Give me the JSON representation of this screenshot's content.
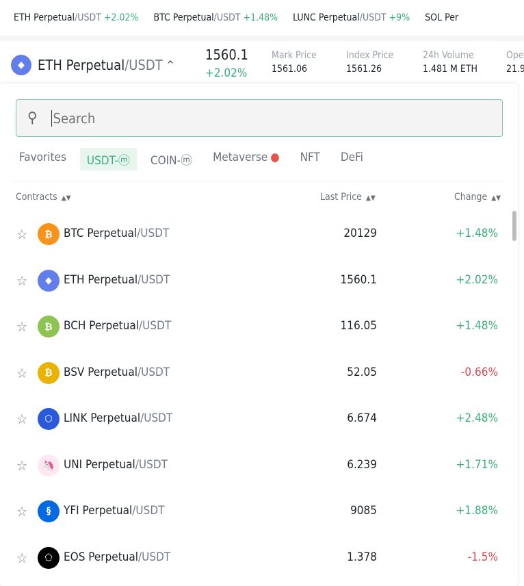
{
  "ticker": [
    {
      "base": "ETH Perpetual",
      "quote": "/USDT",
      "change": "+2.02%"
    },
    {
      "base": "BTC Perpetual",
      "quote": "/USDT",
      "change": "+1.48%"
    },
    {
      "base": "LUNC Perpetual",
      "quote": "/USDT",
      "change": "+9%"
    },
    {
      "base": "SOL Per",
      "quote": "",
      "change": ""
    }
  ],
  "header": {
    "base": "ETH Perpetual",
    "quote": "/USDT",
    "price": "1560.1",
    "change": "+2.02%",
    "stats": [
      {
        "label": "Mark Price",
        "value": "1561.06"
      },
      {
        "label": "Index Price",
        "value": "1561.26"
      },
      {
        "label": "24h Volume",
        "value": "1.481 M ETH"
      },
      {
        "label": "Ope",
        "value": "21.9"
      }
    ]
  },
  "search": {
    "placeholder": "Search"
  },
  "tabs": [
    "Favorites",
    "USDT-ⓜ",
    "COIN-ⓜ",
    "Metaverse",
    "NFT",
    "DeFi"
  ],
  "columns": {
    "contracts": "Contracts",
    "last_price": "Last Price",
    "change": "Change"
  },
  "rows": [
    {
      "base": "BTC Perpetual",
      "quote": "/USDT",
      "price": "20129",
      "change": "+1.48%",
      "up": true,
      "icon": "bitcoin-icon",
      "color": "#f7931a",
      "glyph": "₿"
    },
    {
      "base": "ETH Perpetual",
      "quote": "/USDT",
      "price": "1560.1",
      "change": "+2.02%",
      "up": true,
      "icon": "ethereum-icon",
      "color": "#627eea",
      "glyph": "◆"
    },
    {
      "base": "BCH Perpetual",
      "quote": "/USDT",
      "price": "116.05",
      "change": "+1.48%",
      "up": true,
      "icon": "bitcoin-cash-icon",
      "color": "#8dc351",
      "glyph": "₿"
    },
    {
      "base": "BSV Perpetual",
      "quote": "/USDT",
      "price": "52.05",
      "change": "-0.66%",
      "up": false,
      "icon": "bitcoin-sv-icon",
      "color": "#eab300",
      "glyph": "₿"
    },
    {
      "base": "LINK Perpetual",
      "quote": "/USDT",
      "price": "6.674",
      "change": "+2.48%",
      "up": true,
      "icon": "chainlink-icon",
      "color": "#2a5ada",
      "glyph": "⬡"
    },
    {
      "base": "UNI Perpetual",
      "quote": "/USDT",
      "price": "6.239",
      "change": "+1.71%",
      "up": true,
      "icon": "uniswap-icon",
      "color": "#fde8f2",
      "glyph": "🦄"
    },
    {
      "base": "YFI Perpetual",
      "quote": "/USDT",
      "price": "9085",
      "change": "+1.88%",
      "up": true,
      "icon": "yearn-icon",
      "color": "#006ae3",
      "glyph": "§"
    },
    {
      "base": "EOS Perpetual",
      "quote": "/USDT",
      "price": "1.378",
      "change": "-1.5%",
      "up": false,
      "icon": "eos-icon",
      "color": "#000000",
      "glyph": "⬠"
    }
  ]
}
